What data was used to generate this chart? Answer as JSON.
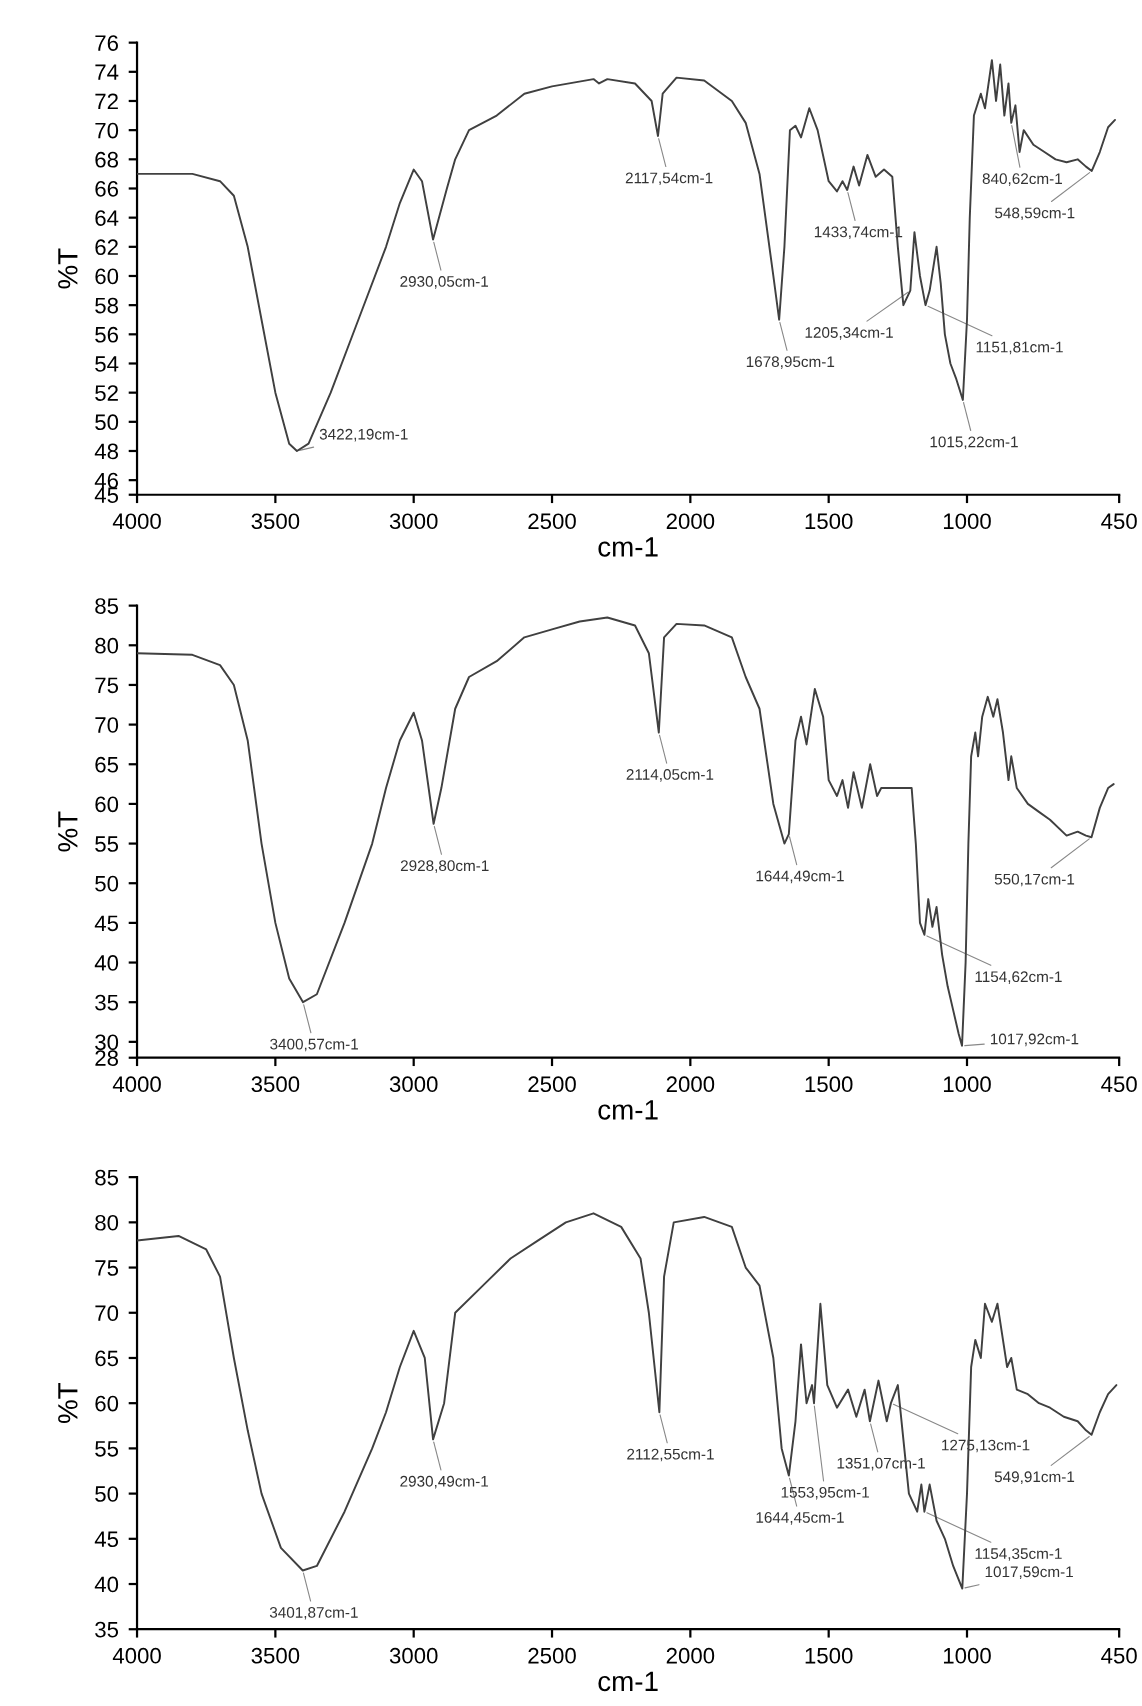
{
  "chart_data": [
    {
      "type": "line",
      "xlabel": "cm-1",
      "ylabel": "%T",
      "xlim": [
        4000,
        450
      ],
      "xticks": [
        4000,
        3500,
        3000,
        2500,
        2000,
        1500,
        1000,
        450
      ],
      "ylim": [
        45,
        76
      ],
      "yticks": [
        45,
        46,
        48,
        50,
        52,
        54,
        56,
        58,
        60,
        62,
        64,
        66,
        68,
        70,
        72,
        74,
        76
      ],
      "x": [
        4000,
        3800,
        3700,
        3650,
        3600,
        3550,
        3500,
        3450,
        3422,
        3380,
        3300,
        3200,
        3100,
        3050,
        3000,
        2970,
        2930,
        2880,
        2850,
        2800,
        2700,
        2600,
        2500,
        2350,
        2330,
        2300,
        2200,
        2140,
        2117,
        2100,
        2050,
        1950,
        1850,
        1800,
        1750,
        1700,
        1679,
        1660,
        1640,
        1620,
        1600,
        1570,
        1540,
        1500,
        1470,
        1450,
        1433,
        1410,
        1390,
        1360,
        1330,
        1300,
        1270,
        1250,
        1230,
        1205,
        1190,
        1170,
        1150,
        1135,
        1110,
        1095,
        1080,
        1060,
        1040,
        1015,
        1000,
        990,
        975,
        950,
        935,
        910,
        895,
        880,
        865,
        850,
        840,
        825,
        810,
        795,
        760,
        720,
        680,
        640,
        600,
        570,
        549,
        520,
        490,
        465
      ],
      "values": [
        67,
        67,
        66.5,
        65.5,
        62,
        57,
        52,
        48.5,
        48,
        48.5,
        52,
        57,
        62,
        65,
        67.3,
        66.5,
        62.5,
        66,
        68,
        70,
        71,
        72.5,
        73,
        73.5,
        73.2,
        73.5,
        73.2,
        72,
        69.6,
        72.5,
        73.6,
        73.4,
        72,
        70.5,
        67,
        60,
        57,
        62,
        70,
        70.3,
        69.5,
        71.5,
        70,
        66.5,
        65.8,
        66.5,
        65.9,
        67.5,
        66.2,
        68.3,
        66.8,
        67.3,
        66.8,
        62,
        58,
        59,
        63,
        60,
        58,
        59,
        62,
        59.5,
        56,
        54,
        53,
        51.5,
        57,
        64,
        71,
        72.5,
        71.5,
        74.8,
        72,
        74.5,
        71,
        73.2,
        70.5,
        71.7,
        68.5,
        70,
        69,
        68.5,
        68,
        67.8,
        68,
        67.5,
        67.2,
        68.5,
        70.2,
        70.7
      ],
      "color": "#404040",
      "annotations": [
        {
          "text": "3422,19cm-1",
          "x": 3422,
          "y": 48
        },
        {
          "text": "2930,05cm-1",
          "x": 2930,
          "y": 62.5
        },
        {
          "text": "2117,54cm-1",
          "x": 2117,
          "y": 69.6
        },
        {
          "text": "1678,95cm-1",
          "x": 1679,
          "y": 57
        },
        {
          "text": "1433,74cm-1",
          "x": 1433,
          "y": 65.9
        },
        {
          "text": "1205,34cm-1",
          "x": 1205,
          "y": 59
        },
        {
          "text": "1151,81cm-1",
          "x": 1150,
          "y": 58
        },
        {
          "text": "1015,22cm-1",
          "x": 1015,
          "y": 51.5
        },
        {
          "text": "840,62cm-1",
          "x": 840,
          "y": 70.5
        },
        {
          "text": "548,59cm-1",
          "x": 549,
          "y": 67.2
        }
      ]
    },
    {
      "type": "line",
      "xlabel": "cm-1",
      "ylabel": "%T",
      "xlim": [
        4000,
        450
      ],
      "xticks": [
        4000,
        3500,
        3000,
        2500,
        2000,
        1500,
        1000,
        450
      ],
      "ylim": [
        28,
        85
      ],
      "yticks": [
        28,
        30,
        35,
        40,
        45,
        50,
        55,
        60,
        65,
        70,
        75,
        80,
        85
      ],
      "x": [
        4000,
        3800,
        3700,
        3650,
        3600,
        3550,
        3500,
        3450,
        3400,
        3350,
        3250,
        3150,
        3100,
        3050,
        3000,
        2970,
        2928,
        2900,
        2850,
        2800,
        2700,
        2600,
        2500,
        2400,
        2300,
        2200,
        2150,
        2114,
        2095,
        2050,
        1950,
        1850,
        1800,
        1750,
        1700,
        1660,
        1644,
        1620,
        1600,
        1580,
        1550,
        1520,
        1500,
        1470,
        1450,
        1430,
        1410,
        1380,
        1350,
        1325,
        1310,
        1200,
        1185,
        1170,
        1154,
        1140,
        1125,
        1110,
        1090,
        1070,
        1050,
        1030,
        1018,
        1005,
        995,
        985,
        970,
        960,
        945,
        925,
        905,
        890,
        870,
        850,
        840,
        820,
        780,
        740,
        700,
        640,
        600,
        570,
        550,
        520,
        490,
        470
      ],
      "values": [
        79,
        78.8,
        77.5,
        75,
        68,
        55,
        45,
        38,
        35,
        36,
        45,
        55,
        62,
        68,
        71.5,
        68,
        57.5,
        62,
        72,
        76,
        78,
        81,
        82,
        83,
        83.5,
        82.5,
        79,
        69,
        81,
        82.7,
        82.5,
        81,
        76,
        72,
        60,
        55,
        56.2,
        68,
        71,
        67.5,
        74.5,
        71,
        63,
        61,
        63,
        59.5,
        64,
        59.5,
        65,
        61,
        62,
        62,
        55,
        45,
        43.5,
        48,
        44.5,
        47,
        41,
        37,
        34,
        31,
        29.5,
        40,
        55,
        66,
        69,
        66,
        71,
        73.5,
        71,
        73.2,
        69,
        63,
        66,
        62,
        60,
        59,
        58,
        56,
        56.5,
        56,
        55.8,
        59.5,
        62,
        62.5
      ],
      "color": "#404040",
      "annotations": [
        {
          "text": "3400,57cm-1",
          "x": 3400,
          "y": 35
        },
        {
          "text": "2928,80cm-1",
          "x": 2928,
          "y": 57.5
        },
        {
          "text": "2114,05cm-1",
          "x": 2114,
          "y": 69
        },
        {
          "text": "1644,49cm-1",
          "x": 1644,
          "y": 56.2
        },
        {
          "text": "1154,62cm-1",
          "x": 1154,
          "y": 43.5
        },
        {
          "text": "1017,92cm-1",
          "x": 1018,
          "y": 29.5
        },
        {
          "text": "550,17cm-1",
          "x": 550,
          "y": 55.8
        }
      ]
    },
    {
      "type": "line",
      "xlabel": "cm-1",
      "ylabel": "%T",
      "xlim": [
        4000,
        450
      ],
      "xticks": [
        4000,
        3500,
        3000,
        2500,
        2000,
        1500,
        1000,
        450
      ],
      "ylim": [
        35,
        85
      ],
      "yticks": [
        35,
        40,
        45,
        50,
        55,
        60,
        65,
        70,
        75,
        80,
        85
      ],
      "x": [
        4000,
        3850,
        3750,
        3700,
        3650,
        3600,
        3550,
        3480,
        3401,
        3350,
        3250,
        3150,
        3100,
        3050,
        3000,
        2960,
        2930,
        2890,
        2850,
        2750,
        2650,
        2550,
        2450,
        2350,
        2250,
        2180,
        2150,
        2112,
        2095,
        2060,
        1950,
        1850,
        1800,
        1750,
        1700,
        1670,
        1644,
        1620,
        1600,
        1580,
        1560,
        1553,
        1530,
        1505,
        1470,
        1430,
        1400,
        1370,
        1351,
        1320,
        1290,
        1275,
        1250,
        1230,
        1210,
        1180,
        1165,
        1154,
        1135,
        1110,
        1080,
        1050,
        1017,
        1000,
        985,
        970,
        950,
        935,
        910,
        890,
        870,
        855,
        840,
        820,
        780,
        740,
        700,
        650,
        600,
        570,
        550,
        520,
        490,
        460
      ],
      "values": [
        78,
        78.5,
        77,
        74,
        65,
        57,
        50,
        44,
        41.5,
        42,
        48,
        55,
        59,
        64,
        68,
        65,
        56,
        60,
        70,
        73,
        76,
        78,
        80,
        81,
        79.5,
        76,
        70,
        59,
        74,
        80,
        80.6,
        79.5,
        75,
        73,
        65,
        55,
        52,
        58,
        66.5,
        60,
        62,
        60,
        71,
        62,
        59.5,
        61.5,
        58.5,
        61.5,
        58,
        62.5,
        58,
        60,
        62,
        56,
        50,
        48,
        51,
        48,
        51,
        47,
        45,
        42,
        39.5,
        50,
        64,
        67,
        65,
        71,
        69,
        71,
        67,
        64,
        65,
        61.5,
        61,
        60,
        59.5,
        58.5,
        58,
        57,
        56.5,
        59,
        61,
        62
      ],
      "color": "#404040",
      "annotations": [
        {
          "text": "3401,87cm-1",
          "x": 3401,
          "y": 41.5
        },
        {
          "text": "2930,49cm-1",
          "x": 2930,
          "y": 56
        },
        {
          "text": "2112,55cm-1",
          "x": 2112,
          "y": 59
        },
        {
          "text": "1644,45cm-1",
          "x": 1644,
          "y": 52
        },
        {
          "text": "1553,95cm-1",
          "x": 1553,
          "y": 60
        },
        {
          "text": "1351,07cm-1",
          "x": 1351,
          "y": 58
        },
        {
          "text": "1275,13cm-1",
          "x": 1275,
          "y": 60
        },
        {
          "text": "1154,35cm-1",
          "x": 1154,
          "y": 48
        },
        {
          "text": "1017,59cm-1",
          "x": 1017,
          "y": 39.5
        },
        {
          "text": "549,91cm-1",
          "x": 550,
          "y": 56.5
        }
      ]
    }
  ]
}
